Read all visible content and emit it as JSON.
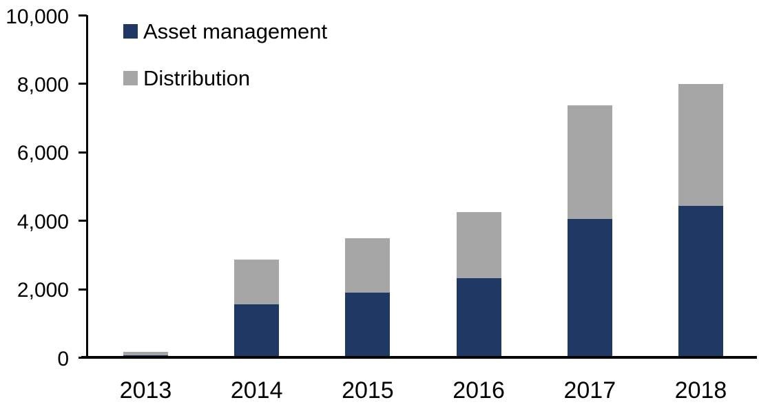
{
  "chart_data": {
    "type": "bar",
    "stacked": true,
    "title": "",
    "xlabel": "",
    "ylabel": "",
    "categories": [
      "2013",
      "2014",
      "2015",
      "2016",
      "2017",
      "2018"
    ],
    "series": [
      {
        "name": "Asset management",
        "color": "#203864",
        "values": [
          80,
          1550,
          1900,
          2320,
          4050,
          4430
        ]
      },
      {
        "name": "Distribution",
        "color": "#A6A6A6",
        "values": [
          100,
          1320,
          1600,
          1930,
          3330,
          3570
        ]
      }
    ],
    "ylim": [
      0,
      10000
    ],
    "yticks": [
      {
        "value": 0,
        "label": "0"
      },
      {
        "value": 2000,
        "label": "2,000"
      },
      {
        "value": 4000,
        "label": "4,000"
      },
      {
        "value": 6000,
        "label": "6,000"
      },
      {
        "value": 8000,
        "label": "8,000"
      },
      {
        "value": 10000,
        "label": "10,000"
      }
    ],
    "grid": false,
    "legend_position": "top-left",
    "background": "#FFFFFF",
    "axis_color": "#000000"
  }
}
